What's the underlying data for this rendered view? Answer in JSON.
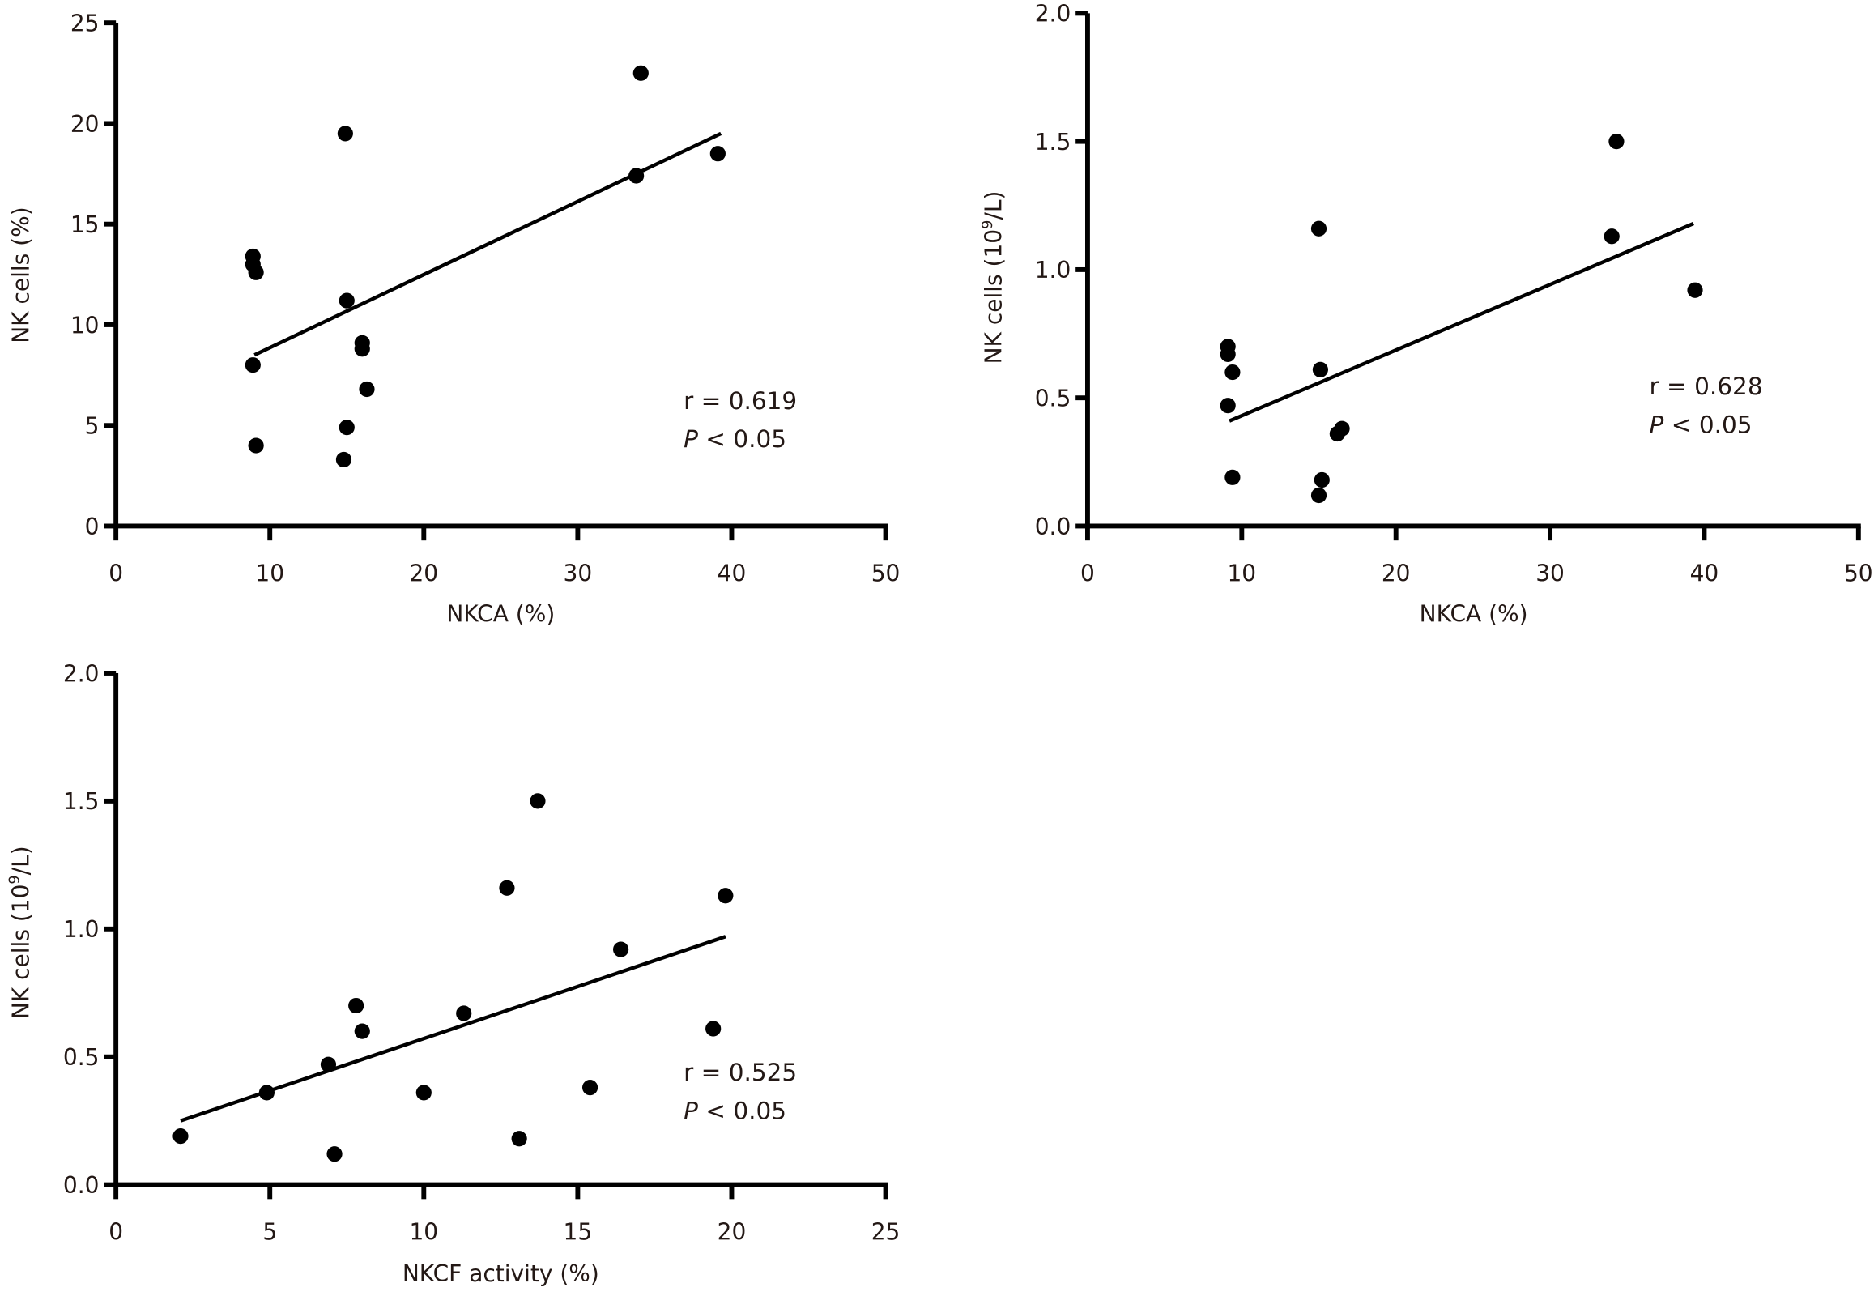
{
  "chart_data": [
    {
      "type": "scatter",
      "title": "",
      "xlabel": "NKCA (%)",
      "ylabel": "NK cells (%)",
      "xlim": [
        0,
        50
      ],
      "ylim": [
        0,
        25
      ],
      "xticks": [
        0,
        10,
        20,
        30,
        40,
        50
      ],
      "yticks": [
        0,
        5,
        10,
        15,
        20,
        25
      ],
      "xtick_labels": [
        "0",
        "10",
        "20",
        "30",
        "40",
        "50"
      ],
      "ytick_labels": [
        "0",
        "5",
        "10",
        "15",
        "20",
        "25"
      ],
      "grid": false,
      "points": [
        {
          "x": 8.9,
          "y": 13.4
        },
        {
          "x": 8.9,
          "y": 13.0
        },
        {
          "x": 9.1,
          "y": 12.6
        },
        {
          "x": 8.9,
          "y": 8.0
        },
        {
          "x": 9.1,
          "y": 4.0
        },
        {
          "x": 14.9,
          "y": 19.5
        },
        {
          "x": 15.0,
          "y": 11.2
        },
        {
          "x": 16.0,
          "y": 9.1
        },
        {
          "x": 16.0,
          "y": 8.8
        },
        {
          "x": 16.3,
          "y": 6.8
        },
        {
          "x": 15.0,
          "y": 4.9
        },
        {
          "x": 14.8,
          "y": 3.3
        },
        {
          "x": 34.1,
          "y": 22.5
        },
        {
          "x": 33.8,
          "y": 17.4
        },
        {
          "x": 39.1,
          "y": 18.5
        }
      ],
      "trendline": {
        "x": [
          9.0,
          39.3
        ],
        "y": [
          8.5,
          19.5
        ]
      },
      "annotation": {
        "r_text": "r = 0.619",
        "p_symbol": "P",
        "p_text": " < 0.05"
      }
    },
    {
      "type": "scatter",
      "title": "",
      "xlabel": "NKCA (%)",
      "ylabel_main": "NK cells (10",
      "ylabel_sup": "9",
      "ylabel_tail": "/L)",
      "xlim": [
        0,
        50
      ],
      "ylim": [
        0,
        2.0
      ],
      "xticks": [
        0,
        10,
        20,
        30,
        40,
        50
      ],
      "yticks": [
        0,
        0.5,
        1.0,
        1.5,
        2.0
      ],
      "xtick_labels": [
        "0",
        "10",
        "20",
        "30",
        "40",
        "50"
      ],
      "ytick_labels": [
        "0.0",
        "0.5",
        "1.0",
        "1.5",
        "2.0"
      ],
      "grid": false,
      "points": [
        {
          "x": 9.1,
          "y": 0.7
        },
        {
          "x": 9.1,
          "y": 0.67
        },
        {
          "x": 9.4,
          "y": 0.6
        },
        {
          "x": 9.1,
          "y": 0.47
        },
        {
          "x": 9.4,
          "y": 0.19
        },
        {
          "x": 15.0,
          "y": 1.16
        },
        {
          "x": 15.1,
          "y": 0.61
        },
        {
          "x": 15.2,
          "y": 0.18
        },
        {
          "x": 15.0,
          "y": 0.12
        },
        {
          "x": 16.2,
          "y": 0.36
        },
        {
          "x": 16.5,
          "y": 0.38
        },
        {
          "x": 34.3,
          "y": 1.5
        },
        {
          "x": 34.0,
          "y": 1.13
        },
        {
          "x": 39.4,
          "y": 0.92
        }
      ],
      "trendline": {
        "x": [
          9.2,
          39.3
        ],
        "y": [
          0.41,
          1.18
        ]
      },
      "annotation": {
        "r_text": "r = 0.628",
        "p_symbol": "P",
        "p_text": " < 0.05"
      }
    },
    {
      "type": "scatter",
      "title": "",
      "xlabel": "NKCF activity (%)",
      "ylabel_main": "NK cells (10",
      "ylabel_sup": "9",
      "ylabel_tail": "/L)",
      "xlim": [
        0,
        25
      ],
      "ylim": [
        0,
        2.0
      ],
      "xticks": [
        0,
        5,
        10,
        15,
        20,
        25
      ],
      "yticks": [
        0,
        0.5,
        1.0,
        1.5,
        2.0
      ],
      "xtick_labels": [
        "0",
        "5",
        "10",
        "15",
        "20",
        "25"
      ],
      "ytick_labels": [
        "0.0",
        "0.5",
        "1.0",
        "1.5",
        "2.0"
      ],
      "grid": false,
      "points": [
        {
          "x": 2.1,
          "y": 0.19
        },
        {
          "x": 4.9,
          "y": 0.36
        },
        {
          "x": 6.9,
          "y": 0.47
        },
        {
          "x": 7.1,
          "y": 0.12
        },
        {
          "x": 7.8,
          "y": 0.7
        },
        {
          "x": 8.0,
          "y": 0.6
        },
        {
          "x": 10.0,
          "y": 0.36
        },
        {
          "x": 11.3,
          "y": 0.67
        },
        {
          "x": 12.7,
          "y": 1.16
        },
        {
          "x": 13.7,
          "y": 1.5
        },
        {
          "x": 13.1,
          "y": 0.18
        },
        {
          "x": 15.4,
          "y": 0.38
        },
        {
          "x": 16.4,
          "y": 0.92
        },
        {
          "x": 19.4,
          "y": 0.61
        },
        {
          "x": 19.8,
          "y": 1.13
        }
      ],
      "trendline": {
        "x": [
          2.1,
          19.8
        ],
        "y": [
          0.25,
          0.97
        ]
      },
      "annotation": {
        "r_text": "r = 0.525",
        "p_symbol": "P",
        "p_text": " < 0.05"
      }
    }
  ]
}
